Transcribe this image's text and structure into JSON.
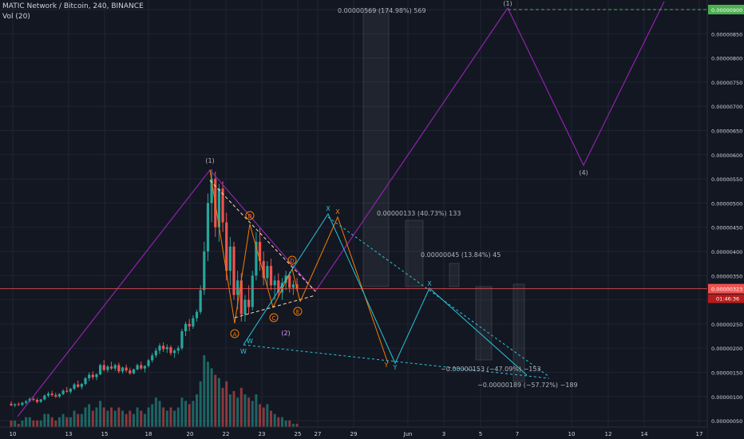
{
  "header": {
    "symbol_line": "MATIC Network / Bitcoin, 240, BINANCE",
    "volume_label": "Vol (20)"
  },
  "colors": {
    "background": "#131722",
    "grid": "#1f2433",
    "up": "#26a69a",
    "down": "#ef5350",
    "wave_purple": "#8e24aa",
    "wave_orange": "#f57c00",
    "wave_teal": "#26c6da",
    "price_line": "#ef5350",
    "target_label": "#4caf50",
    "text": "#b2b5be",
    "axis_text": "#d1d4dc"
  },
  "price_scale": {
    "labels": [
      "0.00000900",
      "0.00000850",
      "0.00000800",
      "0.00000750",
      "0.00000700",
      "0.00000650",
      "0.00000600",
      "0.00000550",
      "0.00000500",
      "0.00000450",
      "0.00000400",
      "0.00000350",
      "0.00000300",
      "0.00000250",
      "0.00000200",
      "0.00000150",
      "0.00000100",
      "0.00000050"
    ],
    "current_price": "0.00000323",
    "countdown": "01:46:36",
    "target_price": "0.00000900"
  },
  "time_scale": {
    "labels": [
      "10",
      "13",
      "15",
      "18",
      "20",
      "22",
      "23",
      "25",
      "27",
      "29",
      "Jun",
      "3",
      "5",
      "7",
      "10",
      "12",
      "14",
      "17"
    ]
  },
  "chart_data": {
    "type": "candlestick",
    "ylim": [
      4e-07,
      9.25e-06
    ],
    "ohlc": [
      [
        8.5e-07,
        9e-07,
        8e-07,
        8.2e-07
      ],
      [
        8.2e-07,
        8.6e-07,
        7.8e-07,
        8.4e-07
      ],
      [
        8.4e-07,
        8.8e-07,
        8.1e-07,
        8.3e-07
      ],
      [
        8.3e-07,
        8.9e-07,
        8e-07,
        8.7e-07
      ],
      [
        8.7e-07,
        9.3e-07,
        8.4e-07,
        9e-07
      ],
      [
        9e-07,
        9.8e-07,
        8.8e-07,
        9.5e-07
      ],
      [
        9.5e-07,
        1e-06,
        9e-07,
        9.3e-07
      ],
      [
        9.3e-07,
        9.7e-07,
        8.6e-07,
        8.9e-07
      ],
      [
        8.9e-07,
        9.5e-07,
        8.7e-07,
        9.4e-07
      ],
      [
        9.4e-07,
        1.04e-06,
        9.2e-07,
        1.02e-06
      ],
      [
        1.02e-06,
        1.1e-06,
        9.8e-07,
        1.06e-06
      ],
      [
        1.06e-06,
        1.12e-06,
        1e-06,
        1.03e-06
      ],
      [
        1.03e-06,
        1.08e-06,
        9.7e-07,
        1e-06
      ],
      [
        1e-06,
        1.07e-06,
        9.7e-07,
        1.05e-06
      ],
      [
        1.05e-06,
        1.15e-06,
        1.03e-06,
        1.12e-06
      ],
      [
        1.12e-06,
        1.2e-06,
        1.08e-06,
        1.1e-06
      ],
      [
        1.1e-06,
        1.18e-06,
        1.06e-06,
        1.16e-06
      ],
      [
        1.16e-06,
        1.28e-06,
        1.13e-06,
        1.25e-06
      ],
      [
        1.25e-06,
        1.33e-06,
        1.18e-06,
        1.2e-06
      ],
      [
        1.2e-06,
        1.28e-06,
        1.15e-06,
        1.26e-06
      ],
      [
        1.26e-06,
        1.4e-06,
        1.23e-06,
        1.38e-06
      ],
      [
        1.38e-06,
        1.5e-06,
        1.32e-06,
        1.45e-06
      ],
      [
        1.45e-06,
        1.52e-06,
        1.35e-06,
        1.4e-06
      ],
      [
        1.4e-06,
        1.48e-06,
        1.34e-06,
        1.46e-06
      ],
      [
        1.46e-06,
        1.68e-06,
        1.44e-06,
        1.65e-06
      ],
      [
        1.65e-06,
        1.75e-06,
        1.52e-06,
        1.55e-06
      ],
      [
        1.55e-06,
        1.65e-06,
        1.5e-06,
        1.62e-06
      ],
      [
        1.62e-06,
        1.72e-06,
        1.55e-06,
        1.58e-06
      ],
      [
        1.58e-06,
        1.68e-06,
        1.53e-06,
        1.65e-06
      ],
      [
        1.65e-06,
        1.7e-06,
        1.48e-06,
        1.52e-06
      ],
      [
        1.52e-06,
        1.62e-06,
        1.48e-06,
        1.6e-06
      ],
      [
        1.6e-06,
        1.66e-06,
        1.5e-06,
        1.54e-06
      ],
      [
        1.54e-06,
        1.6e-06,
        1.45e-06,
        1.48e-06
      ],
      [
        1.48e-06,
        1.58e-06,
        1.46e-06,
        1.56e-06
      ],
      [
        1.56e-06,
        1.68e-06,
        1.54e-06,
        1.65e-06
      ],
      [
        1.65e-06,
        1.72e-06,
        1.55e-06,
        1.58e-06
      ],
      [
        1.58e-06,
        1.65e-06,
        1.5e-06,
        1.63e-06
      ],
      [
        1.63e-06,
        1.78e-06,
        1.6e-06,
        1.75e-06
      ],
      [
        1.75e-06,
        1.9e-06,
        1.7e-06,
        1.85e-06
      ],
      [
        1.85e-06,
        2e-06,
        1.8e-06,
        1.95e-06
      ],
      [
        1.95e-06,
        2.1e-06,
        1.88e-06,
        2.05e-06
      ],
      [
        2.05e-06,
        2.12e-06,
        1.92e-06,
        1.98e-06
      ],
      [
        1.98e-06,
        2.08e-06,
        1.9e-06,
        2.02e-06
      ],
      [
        2.02e-06,
        2.06e-06,
        1.85e-06,
        1.9e-06
      ],
      [
        1.9e-06,
        1.98e-06,
        1.8e-06,
        1.95e-06
      ],
      [
        1.95e-06,
        2.05e-06,
        1.88e-06,
        2e-06
      ],
      [
        2e-06,
        2.4e-06,
        1.96e-06,
        2.35e-06
      ],
      [
        2.35e-06,
        2.55e-06,
        2.25e-06,
        2.5e-06
      ],
      [
        2.5e-06,
        2.6e-06,
        2.35e-06,
        2.45e-06
      ],
      [
        2.45e-06,
        2.68e-06,
        2.4e-06,
        2.62e-06
      ],
      [
        2.62e-06,
        2.8e-06,
        2.55e-06,
        2.75e-06
      ],
      [
        2.75e-06,
        3.3e-06,
        2.7e-06,
        3.2e-06
      ],
      [
        3.2e-06,
        4.2e-06,
        3.1e-06,
        4e-06
      ],
      [
        4e-06,
        5.2e-06,
        3.8e-06,
        5e-06
      ],
      [
        5e-06,
        5.7e-06,
        4.6e-06,
        5.5e-06
      ],
      [
        5.5e-06,
        5.65e-06,
        4.3e-06,
        4.5e-06
      ],
      [
        4.5e-06,
        5.4e-06,
        4.2e-06,
        5.3e-06
      ],
      [
        5.3e-06,
        5.45e-06,
        4.4e-06,
        4.6e-06
      ],
      [
        4.6e-06,
        4.8e-06,
        3.4e-06,
        3.6e-06
      ],
      [
        3.6e-06,
        4.3e-06,
        3.3e-06,
        4.1e-06
      ],
      [
        4.1e-06,
        4.2e-06,
        3e-06,
        3.1e-06
      ],
      [
        3.1e-06,
        3.6e-06,
        2.8e-06,
        3.4e-06
      ],
      [
        3.4e-06,
        3.55e-06,
        2.55e-06,
        2.7e-06
      ],
      [
        2.7e-06,
        3.1e-06,
        2.55e-06,
        3e-06
      ],
      [
        3e-06,
        3.3e-06,
        2.7e-06,
        2.85e-06
      ],
      [
        2.85e-06,
        3.6e-06,
        2.78e-06,
        3.5e-06
      ],
      [
        3.5e-06,
        4.4e-06,
        3.4e-06,
        4.2e-06
      ],
      [
        4.2e-06,
        4.5e-06,
        3.6e-06,
        3.8e-06
      ],
      [
        3.8e-06,
        4e-06,
        3.3e-06,
        3.45e-06
      ],
      [
        3.45e-06,
        3.8e-06,
        3.25e-06,
        3.7e-06
      ],
      [
        3.7e-06,
        3.85e-06,
        3.2e-06,
        3.3e-06
      ],
      [
        3.3e-06,
        3.5e-06,
        3e-06,
        3.4e-06
      ],
      [
        3.4e-06,
        3.55e-06,
        3.05e-06,
        3.15e-06
      ],
      [
        3.15e-06,
        3.45e-06,
        3e-06,
        3.35e-06
      ],
      [
        3.35e-06,
        3.6e-06,
        3.2e-06,
        3.5e-06
      ],
      [
        3.5e-06,
        3.58e-06,
        3.15e-06,
        3.25e-06
      ],
      [
        3.25e-06,
        3.4e-06,
        3.1e-06,
        3.32e-06
      ],
      [
        3.32e-06,
        3.45e-06,
        3.18e-06,
        3.23e-06
      ]
    ],
    "volume": [
      2,
      2,
      1,
      2,
      3,
      3,
      2,
      2,
      2,
      4,
      4,
      3,
      2,
      3,
      4,
      3,
      3,
      5,
      4,
      4,
      6,
      7,
      5,
      6,
      8,
      6,
      5,
      6,
      5,
      6,
      5,
      4,
      5,
      4,
      6,
      5,
      4,
      6,
      7,
      9,
      8,
      6,
      5,
      6,
      5,
      6,
      9,
      8,
      7,
      8,
      10,
      14,
      22,
      20,
      18,
      16,
      15,
      12,
      14,
      10,
      11,
      9,
      12,
      10,
      9,
      8,
      10,
      7,
      6,
      7,
      5,
      4,
      3,
      3,
      2,
      2,
      1,
      1
    ],
    "annotations": {
      "measure_top": "0.00000569 (174.98%) 569",
      "measure_mid1": "0.00000133 (40.73%) 133",
      "measure_mid2": "0.00000045 (13.84%) 45",
      "measure_neg1": "−0.00000153 (−47.09%) −153",
      "measure_neg2": "−0.00000189 (−57.72%) −189",
      "wave_1": "(1)",
      "wave_2": "(2)",
      "wave_4": "(4)",
      "label_A": "A",
      "label_B": "B",
      "label_C": "C",
      "label_D": "D",
      "label_E": "E",
      "label_W": "W",
      "label_X": "X",
      "label_Y": "Y"
    }
  }
}
